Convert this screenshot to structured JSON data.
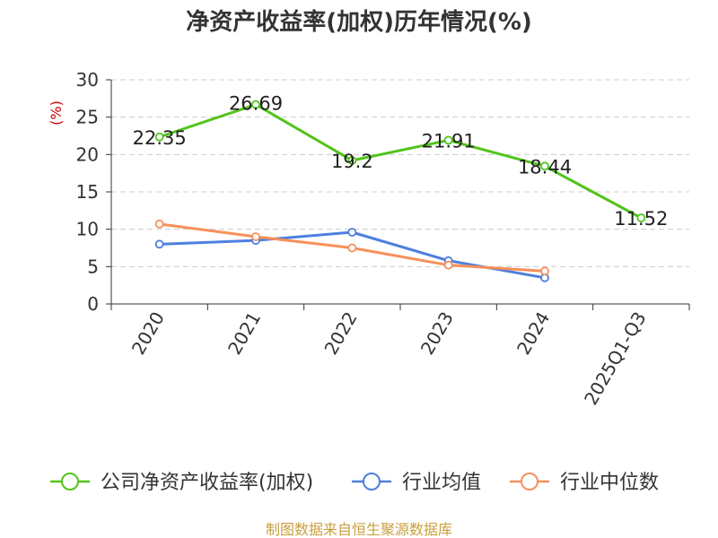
{
  "chart_data": {
    "type": "line",
    "title": "净资产收益率(加权)历年情况(%)",
    "ylabel": "(%)",
    "categories": [
      "2020",
      "2021",
      "2022",
      "2023",
      "2024",
      "2025Q1-Q3"
    ],
    "ylim": [
      0,
      30
    ],
    "yticks": [
      0,
      5,
      10,
      15,
      20,
      25,
      30
    ],
    "grid": true,
    "legend_position": "bottom",
    "series": [
      {
        "name": "公司净资产收益率(加权)",
        "color": "#52c41a",
        "values": [
          22.35,
          26.69,
          19.2,
          21.91,
          18.44,
          11.52
        ],
        "labels": [
          "22.35",
          "26.69",
          "19.2",
          "21.91",
          "18.44",
          "11.52"
        ]
      },
      {
        "name": "行业均值",
        "color": "#4e7fde",
        "values": [
          8.0,
          8.5,
          9.6,
          5.8,
          3.5,
          null
        ]
      },
      {
        "name": "行业中位数",
        "color": "#f7905a",
        "values": [
          10.7,
          9.0,
          7.5,
          5.2,
          4.4,
          null
        ]
      }
    ],
    "source": "制图数据来自恒生聚源数据库"
  },
  "colors": {
    "ylabel": "#cc0000",
    "source": "#c8a040",
    "grid": "#cccccc",
    "axis": "#333333"
  }
}
